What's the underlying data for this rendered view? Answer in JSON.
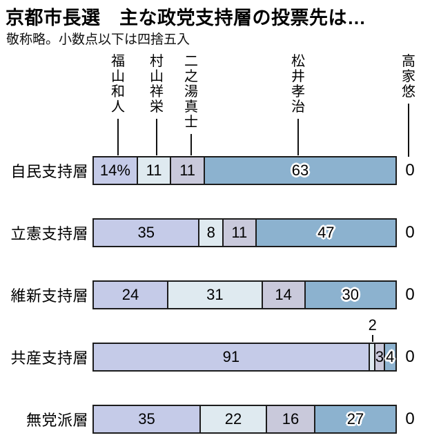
{
  "title": "京都市長選　主な政党支持層の投票先は…",
  "subtitle": "敬称略。小数点以下は四捨五入",
  "colors": {
    "background": "#ffffff",
    "bar_border": "#1b1b1b",
    "text": "#000000",
    "segment_colors": [
      "#c5cbe8",
      "#dfeaf0",
      "#c9c9db",
      "#8cb2cf",
      "#ffffff"
    ]
  },
  "chart_data": {
    "type": "bar",
    "variant": "horizontal-stacked",
    "unit": "%",
    "axis_max": 100,
    "legend_position": "top-leader-lines",
    "grid": false,
    "candidates": [
      {
        "name": "福山和人",
        "color": "#c5cbe8",
        "label_halo": false
      },
      {
        "name": "村山祥栄",
        "color": "#dfeaf0",
        "label_halo": false
      },
      {
        "name": "二之湯真士",
        "color": "#c9c9db",
        "label_halo": false
      },
      {
        "name": "松井孝治",
        "color": "#8cb2cf",
        "label_halo": true
      },
      {
        "name": "高家悠",
        "color": "#ffffff",
        "label_halo": false
      }
    ],
    "categories": [
      "自民支持層",
      "立憲支持層",
      "維新支持層",
      "共産支持層",
      "無党派層"
    ],
    "rows": [
      {
        "category": "自民支持層",
        "values": [
          14,
          11,
          11,
          63,
          0
        ],
        "value_labels": [
          "14%",
          "11",
          "11",
          "63",
          "0"
        ]
      },
      {
        "category": "立憲支持層",
        "values": [
          35,
          8,
          11,
          47,
          0
        ],
        "value_labels": [
          "35",
          "8",
          "11",
          "47",
          "0"
        ]
      },
      {
        "category": "維新支持層",
        "values": [
          24,
          31,
          14,
          30,
          0
        ],
        "value_labels": [
          "24",
          "31",
          "14",
          "30",
          "0"
        ]
      },
      {
        "category": "共産支持層",
        "values": [
          91,
          2,
          3,
          4,
          0
        ],
        "value_labels": [
          "91",
          "2",
          "3",
          "4",
          "0"
        ],
        "callout": {
          "segment_index": 1,
          "label": "2"
        }
      },
      {
        "category": "無党派層",
        "values": [
          35,
          22,
          16,
          27,
          0
        ],
        "value_labels": [
          "35",
          "22",
          "16",
          "27",
          "0"
        ]
      }
    ],
    "series": [
      {
        "name": "福山和人",
        "values": [
          14,
          35,
          24,
          91,
          35
        ]
      },
      {
        "name": "村山祥栄",
        "values": [
          11,
          8,
          31,
          2,
          22
        ]
      },
      {
        "name": "二之湯真士",
        "values": [
          11,
          11,
          14,
          3,
          16
        ]
      },
      {
        "name": "松井孝治",
        "values": [
          63,
          47,
          30,
          4,
          27
        ]
      },
      {
        "name": "高家悠",
        "values": [
          0,
          0,
          0,
          0,
          0
        ]
      }
    ]
  }
}
